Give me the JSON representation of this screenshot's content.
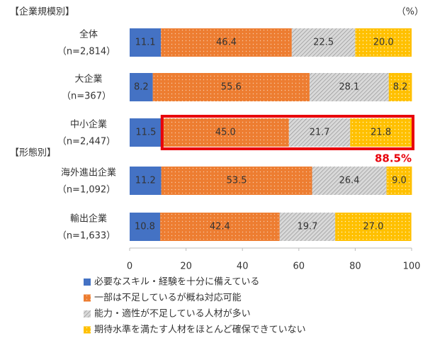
{
  "chart_data": {
    "type": "stacked-bar-horizontal",
    "group_labels": [
      "【企業規模別】",
      "【形態別】"
    ],
    "unit": "（%）",
    "categories": [
      "全体",
      "大企業",
      "中小企業",
      "海外進出企業",
      "輸出企業"
    ],
    "category_notes": [
      "（n=2,814）",
      "（n=367）",
      "（n=2,447）",
      "（n=1,092）",
      "（n=1,633）"
    ],
    "series": [
      {
        "name": "必要なスキル・経験を十分に備えている",
        "color": "#4472c4",
        "values": [
          11.1,
          8.2,
          11.5,
          11.2,
          10.8
        ],
        "value_labels": [
          "11.1",
          "8.2",
          "11.5",
          "11.2",
          "10.8"
        ]
      },
      {
        "name": "一部は不足しているが概ね対応可能",
        "color": "#ed7d31",
        "values": [
          46.4,
          55.6,
          45.0,
          53.5,
          42.4
        ],
        "value_labels": [
          "46.4",
          "55.6",
          "45.0",
          "53.5",
          "42.4"
        ]
      },
      {
        "name": "能力・適性が不足している人材が多い",
        "color": "#bfbfbf",
        "values": [
          22.5,
          28.1,
          21.7,
          26.4,
          19.7
        ],
        "value_labels": [
          "22.5",
          "28.1",
          "21.7",
          "26.4",
          "19.7"
        ]
      },
      {
        "name": "期待水準を満たす人材をほとんど確保できていない",
        "color": "#ffc000",
        "values": [
          20.0,
          8.2,
          21.8,
          9.0,
          27.0
        ],
        "value_labels": [
          "20.0",
          "8.2",
          "21.8",
          "9.0",
          "27.0"
        ]
      }
    ],
    "xlim": [
      0,
      100
    ],
    "xticks": [
      0,
      20,
      40,
      60,
      80,
      100
    ],
    "highlight_category": 2,
    "annotation": "88.5%"
  }
}
